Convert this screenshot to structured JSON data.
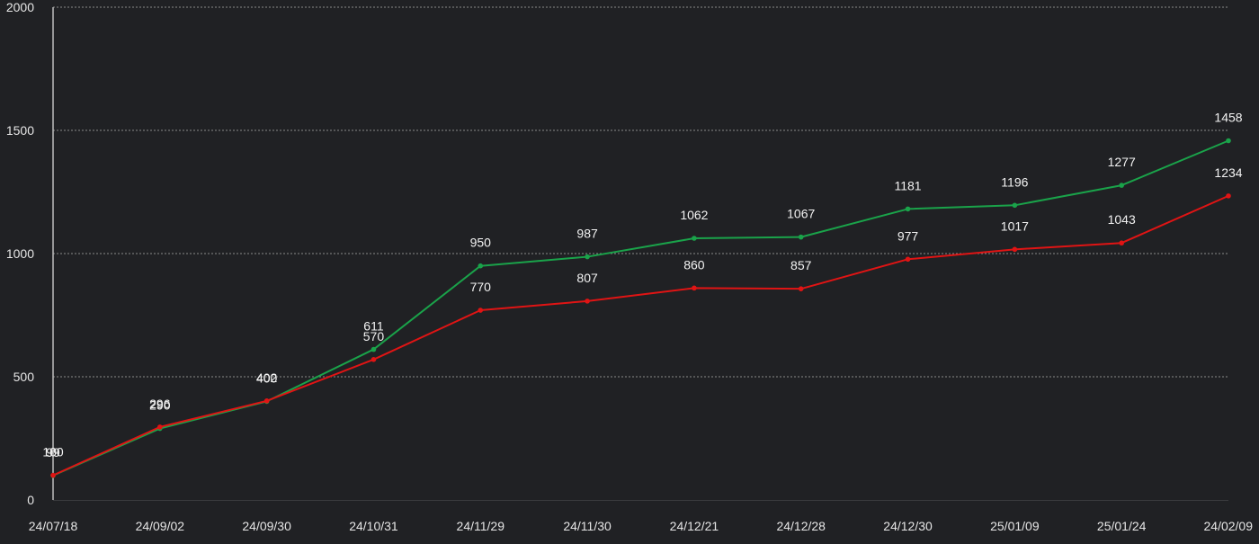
{
  "chart_data": {
    "type": "line",
    "categories": [
      "24/07/18",
      "24/09/02",
      "24/09/30",
      "24/10/31",
      "24/11/29",
      "24/11/30",
      "24/12/21",
      "24/12/28",
      "24/12/30",
      "25/01/09",
      "25/01/24",
      "24/02/09"
    ],
    "series": [
      {
        "name": "",
        "color": "#1aa34a",
        "values": [
          99,
          290,
          400,
          611,
          950,
          987,
          1062,
          1067,
          1181,
          1196,
          1277,
          1458
        ]
      },
      {
        "name": "",
        "color": "#e01414",
        "values": [
          100,
          296,
          402,
          570,
          770,
          807,
          860,
          857,
          977,
          1017,
          1043,
          1234
        ]
      }
    ],
    "title": "",
    "xlabel": "",
    "ylabel": "",
    "ylim": [
      0,
      2000
    ],
    "yticks": [
      0,
      500,
      1000,
      1500,
      2000
    ],
    "grid": true,
    "legend": "none"
  }
}
